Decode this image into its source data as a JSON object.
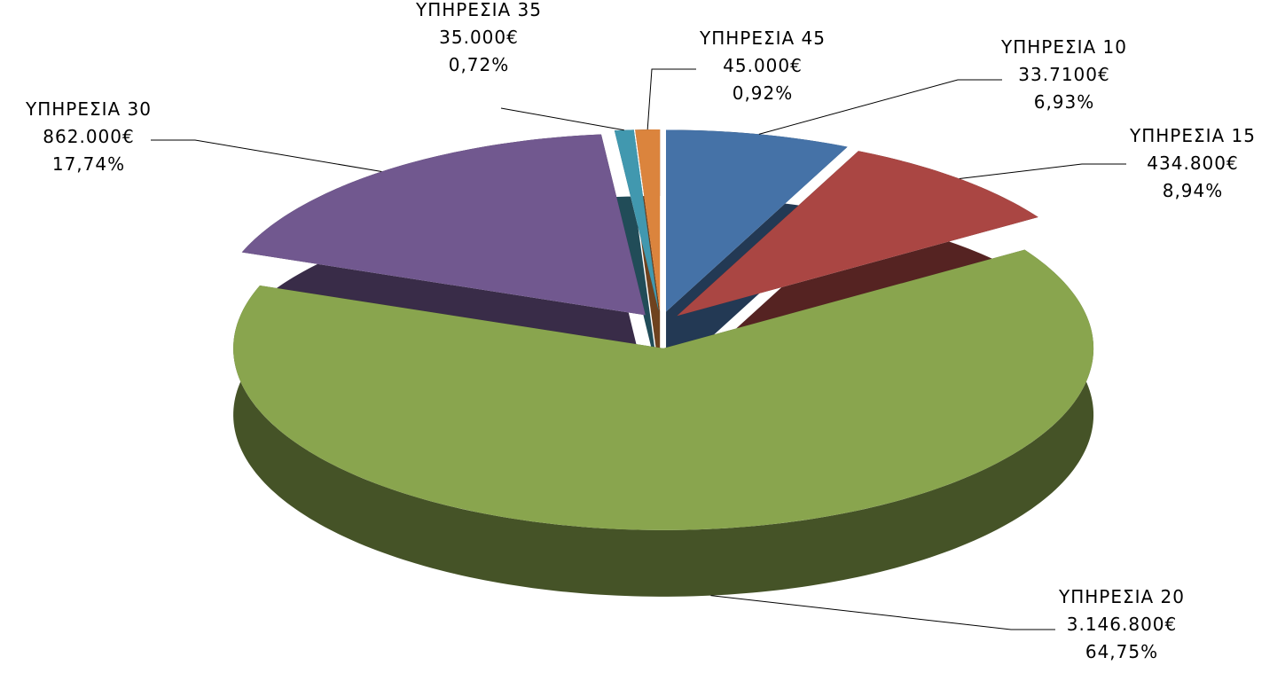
{
  "chart_data": {
    "type": "pie",
    "categories": [
      "ΥΠΗΡΕΣΙΑ 10",
      "ΥΠΗΡΕΣΙΑ 15",
      "ΥΠΗΡΕΣΙΑ 20",
      "ΥΠΗΡΕΣΙΑ 30",
      "ΥΠΗΡΕΣΙΑ 35",
      "ΥΠΗΡΕΣΙΑ 45"
    ],
    "values": [
      6.93,
      8.94,
      64.75,
      17.74,
      0.72,
      0.92
    ],
    "value_labels": [
      "6,93%",
      "8,94%",
      "64,75%",
      "17,74%",
      "0,72%",
      "0,92%"
    ],
    "amount_labels": [
      "33.7100€",
      "434.800€",
      "3.146.800€",
      "862.000€",
      "35.000€",
      "45.000€"
    ],
    "colors": [
      "#4572a7",
      "#aa4643",
      "#89a54e",
      "#71588f",
      "#4198af",
      "#db843d"
    ]
  }
}
